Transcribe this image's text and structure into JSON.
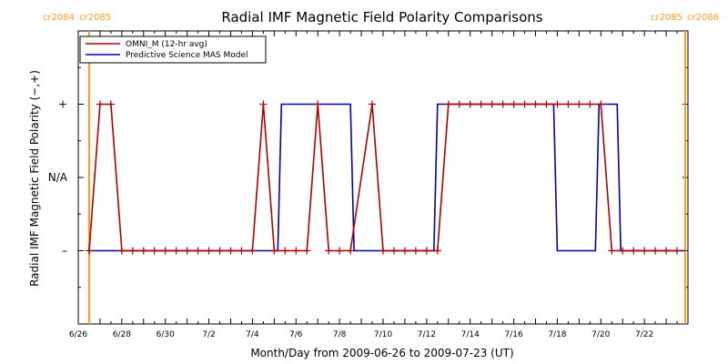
{
  "chart_data": {
    "type": "line",
    "title": "Radial IMF Magnetic Field Polarity Comparisons",
    "xlabel": "Month/Day from 2009-06-26 to 2009-07-23 (UT)",
    "ylabel": "Radial IMF Magnetic Field Polarity (−,+)",
    "xlim": [
      "2009-06-26",
      "2009-07-24"
    ],
    "ylim": [
      -2,
      2
    ],
    "y_ticks": [
      {
        "value": 1,
        "label": "+"
      },
      {
        "value": 0,
        "label": "N/A"
      },
      {
        "value": -1,
        "label": "–"
      }
    ],
    "x_ticks": [
      {
        "date": "2009-06-26",
        "label": "6/26"
      },
      {
        "date": "2009-06-28",
        "label": "6/28"
      },
      {
        "date": "2009-06-30",
        "label": "6/30"
      },
      {
        "date": "2009-07-02",
        "label": "7/2"
      },
      {
        "date": "2009-07-04",
        "label": "7/4"
      },
      {
        "date": "2009-07-06",
        "label": "7/6"
      },
      {
        "date": "2009-07-08",
        "label": "7/8"
      },
      {
        "date": "2009-07-10",
        "label": "7/10"
      },
      {
        "date": "2009-07-12",
        "label": "7/12"
      },
      {
        "date": "2009-07-14",
        "label": "7/14"
      },
      {
        "date": "2009-07-16",
        "label": "7/16"
      },
      {
        "date": "2009-07-18",
        "label": "7/18"
      },
      {
        "date": "2009-07-20",
        "label": "7/20"
      },
      {
        "date": "2009-07-22",
        "label": "7/22"
      }
    ],
    "carrington_markers": [
      {
        "date": "2009-06-26 12:00",
        "label_left": "cr2084",
        "label_right": "cr2085"
      },
      {
        "date": "2009-07-23 21:00",
        "label_left": "cr2085",
        "label_right": "cr2086"
      }
    ],
    "series": [
      {
        "name": "OMNI_M (12-hr avg)",
        "color": "#b00000",
        "markers": "plus",
        "x": [
          "2009-06-26 12:00",
          "2009-06-27 00:00",
          "2009-06-27 12:00",
          "2009-06-28 00:00",
          "2009-06-28 12:00",
          "2009-06-29 00:00",
          "2009-06-29 12:00",
          "2009-06-30 00:00",
          "2009-06-30 12:00",
          "2009-07-01 00:00",
          "2009-07-01 12:00",
          "2009-07-02 00:00",
          "2009-07-02 12:00",
          "2009-07-03 00:00",
          "2009-07-03 12:00",
          "2009-07-04 00:00",
          "2009-07-04 12:00",
          "2009-07-05 00:00",
          "2009-07-05 12:00",
          "2009-07-06 00:00",
          "2009-07-06 12:00",
          "2009-07-07 00:00",
          "2009-07-07 12:00",
          "2009-07-08 00:00",
          "2009-07-08 12:00",
          "2009-07-09 12:00",
          "2009-07-10 00:00",
          "2009-07-10 12:00",
          "2009-07-11 00:00",
          "2009-07-11 12:00",
          "2009-07-12 00:00",
          "2009-07-12 12:00",
          "2009-07-13 00:00",
          "2009-07-13 12:00",
          "2009-07-14 00:00",
          "2009-07-14 12:00",
          "2009-07-15 00:00",
          "2009-07-15 12:00",
          "2009-07-16 00:00",
          "2009-07-16 12:00",
          "2009-07-17 00:00",
          "2009-07-17 12:00",
          "2009-07-18 00:00",
          "2009-07-18 12:00",
          "2009-07-19 00:00",
          "2009-07-19 12:00",
          "2009-07-20 00:00",
          "2009-07-20 12:00",
          "2009-07-21 00:00",
          "2009-07-21 12:00",
          "2009-07-22 00:00",
          "2009-07-22 12:00",
          "2009-07-23 00:00",
          "2009-07-23 12:00"
        ],
        "y": [
          -1,
          1,
          1,
          -1,
          -1,
          -1,
          -1,
          -1,
          -1,
          -1,
          -1,
          -1,
          -1,
          -1,
          -1,
          -1,
          1,
          -1,
          -1,
          -1,
          -1,
          1,
          -1,
          -1,
          -1,
          1,
          -1,
          -1,
          -1,
          -1,
          -1,
          -1,
          1,
          1,
          1,
          1,
          1,
          1,
          1,
          1,
          1,
          1,
          1,
          1,
          1,
          1,
          1,
          -1,
          -1,
          -1,
          -1,
          -1,
          -1,
          -1
        ]
      },
      {
        "name": "Predictive Science MAS Model",
        "color": "#0000b4",
        "markers": "none",
        "x": [
          "2009-06-26 12:00",
          "2009-07-05 04:00",
          "2009-07-05 08:00",
          "2009-07-08 12:00",
          "2009-07-08 16:00",
          "2009-07-12 08:00",
          "2009-07-12 12:00",
          "2009-07-17 20:00",
          "2009-07-18 00:00",
          "2009-07-19 18:00",
          "2009-07-19 22:00",
          "2009-07-20 18:00",
          "2009-07-20 22:00",
          "2009-07-23 21:00"
        ],
        "y": [
          -1,
          -1,
          1,
          1,
          -1,
          -1,
          1,
          1,
          -1,
          -1,
          1,
          1,
          -1,
          -1
        ]
      }
    ],
    "legend_position": "top-left",
    "grid": false
  }
}
